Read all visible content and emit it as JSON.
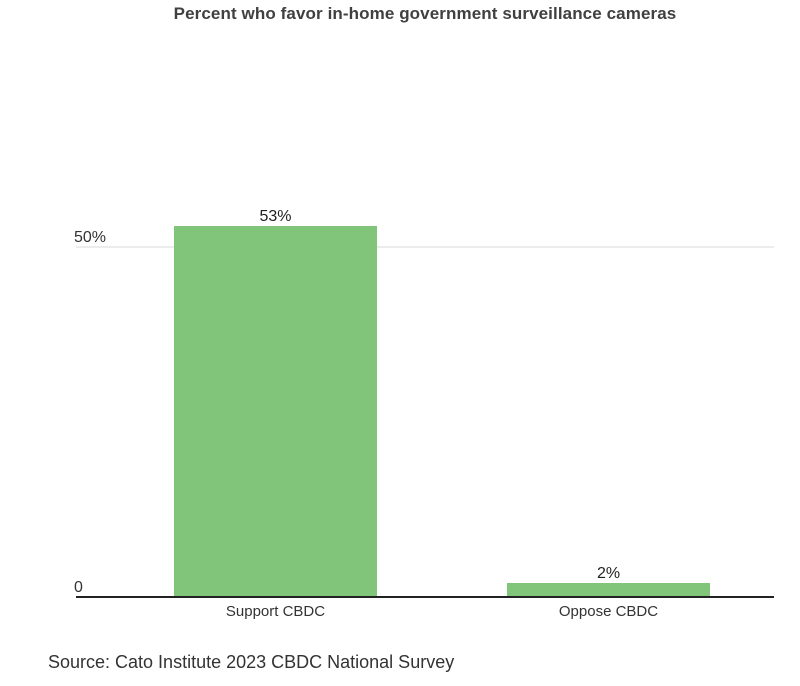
{
  "chart_data": {
    "type": "bar",
    "title": "Percent who favor in-home government surveillance cameras",
    "categories": [
      "Support CBDC",
      "Oppose CBDC"
    ],
    "values": [
      53,
      2
    ],
    "data_labels": [
      "53%",
      "2%"
    ],
    "y_ticks": [
      {
        "value": 0,
        "label": "0"
      },
      {
        "value": 50,
        "label": "50%"
      }
    ],
    "ylim": [
      0,
      53
    ],
    "grid": true,
    "bar_color": "#80c57a",
    "gridline_color": "#d9d9d9",
    "axis_color": "#222222"
  },
  "source": "Source: Cato Institute 2023 CBDC National Survey"
}
